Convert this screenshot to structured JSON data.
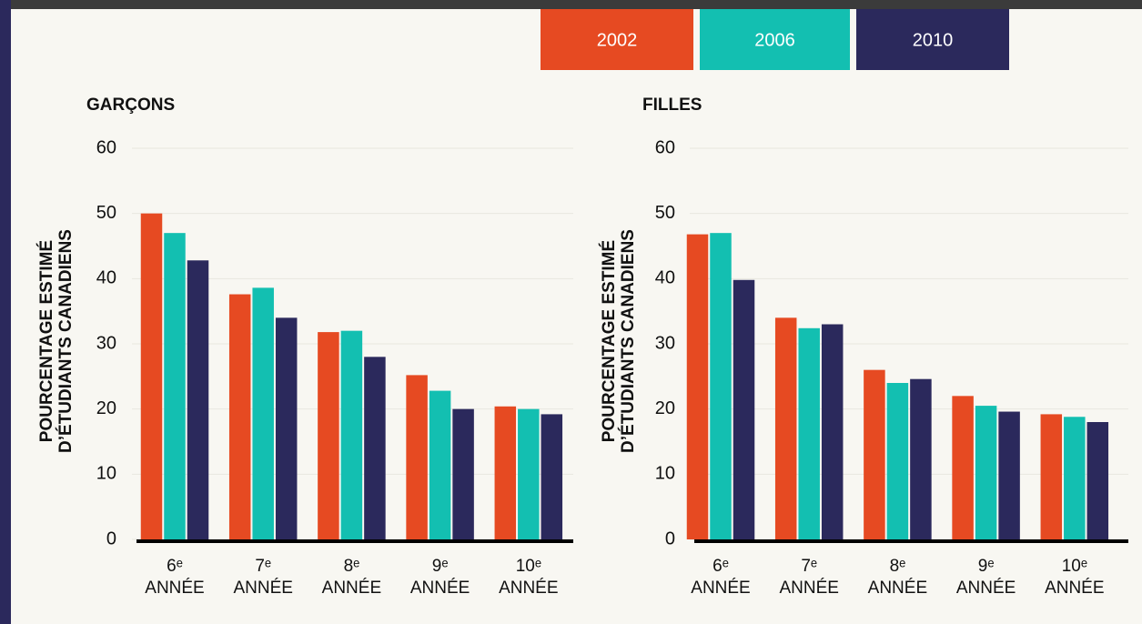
{
  "chart_data": [
    {
      "type": "bar",
      "title": "GARÇONS",
      "ylabel": "POURCENTAGE ESTIMÉ\nD’ÉTUDIANTS CANADIENS",
      "categories": [
        "6ᵉ\nANNÉE",
        "7ᵉ\nANNÉE",
        "8ᵉ\nANNÉE",
        "9ᵉ\nANNÉE",
        "10ᵉ\nANNÉE"
      ],
      "series": [
        {
          "name": "2002",
          "color": "#e64a22",
          "values": [
            50,
            37.6,
            31.8,
            25.2,
            20.4
          ]
        },
        {
          "name": "2006",
          "color": "#13bfb1",
          "values": [
            47,
            38.6,
            32,
            22.8,
            20
          ]
        },
        {
          "name": "2010",
          "color": "#2b295c",
          "values": [
            42.8,
            34,
            28,
            20,
            19.2
          ]
        }
      ],
      "ylim": [
        0,
        60
      ],
      "yticks": [
        0,
        10,
        20,
        30,
        40,
        50,
        60
      ],
      "grid": true
    },
    {
      "type": "bar",
      "title": "FILLES",
      "ylabel": "POURCENTAGE ESTIMÉ\nD’ÉTUDIANTS CANADIENS",
      "categories": [
        "6ᵉ\nANNÉE",
        "7ᵉ\nANNÉE",
        "8ᵉ\nANNÉE",
        "9ᵉ\nANNÉE",
        "10ᵉ\nANNÉE"
      ],
      "series": [
        {
          "name": "2002",
          "color": "#e64a22",
          "values": [
            46.8,
            34,
            26,
            22,
            19.2
          ]
        },
        {
          "name": "2006",
          "color": "#13bfb1",
          "values": [
            47,
            32.4,
            24,
            20.5,
            18.8
          ]
        },
        {
          "name": "2010",
          "color": "#2b295c",
          "values": [
            39.8,
            33,
            24.6,
            19.6,
            18
          ]
        }
      ],
      "ylim": [
        0,
        60
      ],
      "yticks": [
        0,
        10,
        20,
        30,
        40,
        50,
        60
      ],
      "grid": true
    }
  ]
}
